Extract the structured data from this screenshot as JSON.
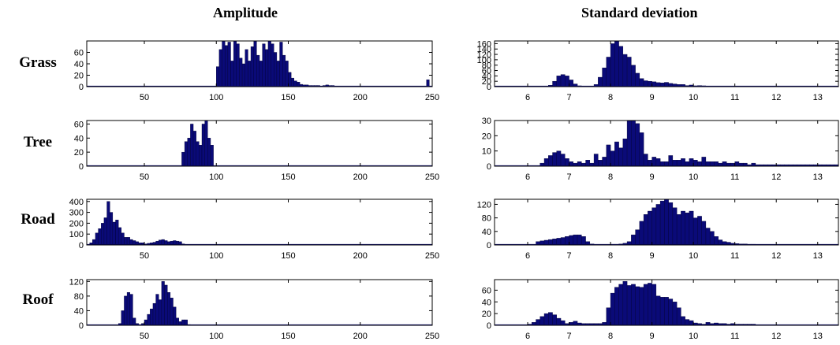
{
  "titles": {
    "left": "Amplitude",
    "right": "Standard deviation"
  },
  "row_labels": [
    "Grass",
    "Tree",
    "Road",
    "Roof"
  ],
  "colors": {
    "bar": "#0a0a78",
    "bar_stroke": "#000033",
    "axis": "#000000"
  },
  "chart_data": [
    {
      "type": "bar",
      "class": "Grass",
      "feature": "Amplitude",
      "xlim": [
        10,
        250
      ],
      "ylim": [
        0,
        80
      ],
      "xticks": [
        50,
        100,
        150,
        200,
        250
      ],
      "yticks": [
        0,
        20,
        40,
        60
      ],
      "bin_start": 10,
      "bin_width": 2,
      "values": [
        0,
        0,
        0,
        0,
        0,
        0,
        0,
        0,
        0,
        0,
        0,
        0,
        0,
        0,
        0,
        0,
        0,
        0,
        0,
        0,
        0,
        0,
        0,
        0,
        0,
        0,
        0,
        0,
        0,
        0,
        0,
        0,
        0,
        0,
        0,
        0,
        0,
        0,
        0,
        0,
        0,
        0,
        0,
        0,
        0,
        35,
        65,
        80,
        72,
        78,
        45,
        80,
        75,
        50,
        40,
        65,
        45,
        70,
        80,
        55,
        45,
        75,
        65,
        80,
        75,
        60,
        45,
        78,
        55,
        45,
        25,
        15,
        10,
        8,
        4,
        3,
        3,
        2,
        2,
        2,
        2,
        1,
        2,
        3,
        2,
        2,
        1,
        1,
        1,
        1,
        1,
        1,
        1,
        1,
        1,
        1,
        1,
        0,
        0,
        0,
        0,
        0,
        0,
        0,
        0,
        0,
        0,
        0,
        0,
        0,
        0,
        0,
        0,
        0,
        0,
        0,
        0,
        0,
        12
      ]
    },
    {
      "type": "bar",
      "class": "Grass",
      "feature": "Standard deviation",
      "xlim": [
        5.2,
        13.5
      ],
      "ylim": [
        0,
        170
      ],
      "xticks": [
        6,
        7,
        8,
        9,
        10,
        11,
        12,
        13
      ],
      "yticks": [
        0,
        20,
        40,
        60,
        80,
        100,
        120,
        140,
        160
      ],
      "bin_start": 5.2,
      "bin_width": 0.1,
      "values": [
        0,
        0,
        0,
        0,
        0,
        0,
        0,
        0,
        0,
        0,
        0,
        0,
        2,
        5,
        20,
        40,
        45,
        40,
        25,
        10,
        3,
        2,
        2,
        2,
        8,
        35,
        70,
        110,
        160,
        170,
        150,
        120,
        110,
        80,
        50,
        30,
        22,
        20,
        18,
        15,
        14,
        16,
        12,
        10,
        8,
        8,
        4,
        6,
        3,
        4,
        3,
        2,
        2,
        2,
        2,
        2,
        2,
        1,
        1,
        1,
        1,
        1,
        1,
        1,
        1,
        1,
        1,
        1,
        1,
        1,
        1,
        1,
        1,
        1,
        1,
        1,
        1,
        1,
        1,
        1,
        1,
        1,
        1
      ]
    },
    {
      "type": "bar",
      "class": "Tree",
      "feature": "Amplitude",
      "xlim": [
        10,
        250
      ],
      "ylim": [
        0,
        65
      ],
      "xticks": [
        50,
        100,
        150,
        200,
        250
      ],
      "yticks": [
        0,
        20,
        40,
        60
      ],
      "bin_start": 10,
      "bin_width": 2,
      "values": [
        0,
        0,
        0,
        0,
        0,
        0,
        0,
        0,
        0,
        0,
        0,
        0,
        0,
        0,
        0,
        0,
        0,
        0,
        0,
        0,
        0,
        0,
        0,
        0,
        0,
        0,
        0,
        0,
        0,
        0,
        0,
        0,
        0,
        20,
        35,
        40,
        60,
        50,
        35,
        30,
        60,
        65,
        40,
        30
      ]
    },
    {
      "type": "bar",
      "class": "Tree",
      "feature": "Standard deviation",
      "xlim": [
        5.2,
        13.5
      ],
      "ylim": [
        0,
        30
      ],
      "xticks": [
        6,
        7,
        8,
        9,
        10,
        11,
        12,
        13
      ],
      "yticks": [
        0,
        10,
        20,
        30
      ],
      "bin_start": 5.2,
      "bin_width": 0.1,
      "values": [
        0,
        0,
        0,
        0,
        0,
        0,
        0,
        0,
        0,
        0,
        0,
        2,
        5,
        7,
        9,
        10,
        8,
        5,
        3,
        2,
        3,
        2,
        4,
        2,
        8,
        4,
        6,
        14,
        10,
        16,
        12,
        18,
        30,
        30,
        28,
        22,
        8,
        4,
        6,
        5,
        3,
        3,
        7,
        4,
        4,
        5,
        3,
        5,
        4,
        3,
        6,
        3,
        3,
        3,
        2,
        3,
        2,
        2,
        3,
        2,
        2,
        1,
        2,
        1,
        1,
        1,
        1,
        1,
        1,
        1,
        1,
        1,
        1,
        1,
        1,
        1,
        1,
        1,
        1,
        1,
        1,
        1,
        1
      ]
    },
    {
      "type": "bar",
      "class": "Road",
      "feature": "Amplitude",
      "xlim": [
        10,
        250
      ],
      "ylim": [
        0,
        420
      ],
      "xticks": [
        50,
        100,
        150,
        200,
        250
      ],
      "yticks": [
        0,
        100,
        200,
        300,
        400
      ],
      "bin_start": 10,
      "bin_width": 2,
      "values": [
        0,
        20,
        50,
        110,
        150,
        200,
        250,
        400,
        300,
        210,
        230,
        160,
        110,
        70,
        70,
        50,
        40,
        30,
        20,
        20,
        10,
        15,
        20,
        25,
        35,
        45,
        50,
        40,
        30,
        35,
        40,
        35,
        30,
        10,
        5,
        3,
        2,
        2,
        1,
        1,
        1,
        1,
        1,
        1,
        1,
        1,
        1,
        1,
        1,
        1,
        1,
        1,
        1,
        1,
        1,
        1,
        1,
        1,
        1,
        1,
        1,
        1,
        1,
        1,
        1,
        1,
        1,
        1,
        1,
        1,
        1,
        1,
        1,
        1,
        1,
        1,
        1,
        1,
        1,
        1,
        1,
        1,
        1,
        1,
        1,
        1,
        1,
        1,
        1,
        1,
        1,
        1,
        1,
        1,
        1,
        1,
        1,
        1,
        1,
        1,
        1,
        1,
        1,
        1,
        1,
        1,
        1,
        1,
        1,
        1,
        1,
        1,
        1,
        1,
        1,
        1,
        1,
        1,
        1,
        1
      ]
    },
    {
      "type": "bar",
      "class": "Road",
      "feature": "Standard deviation",
      "xlim": [
        5.2,
        13.5
      ],
      "ylim": [
        0,
        135
      ],
      "xticks": [
        6,
        7,
        8,
        9,
        10,
        11,
        12,
        13
      ],
      "yticks": [
        0,
        40,
        80,
        120
      ],
      "bin_start": 5.2,
      "bin_width": 0.1,
      "values": [
        0,
        0,
        0,
        0,
        0,
        0,
        0,
        0,
        0,
        0,
        10,
        12,
        14,
        16,
        18,
        20,
        22,
        25,
        28,
        30,
        30,
        25,
        10,
        3,
        1,
        1,
        1,
        1,
        2,
        2,
        3,
        5,
        10,
        30,
        45,
        70,
        90,
        100,
        110,
        120,
        130,
        135,
        125,
        110,
        90,
        100,
        95,
        100,
        80,
        85,
        70,
        50,
        40,
        25,
        15,
        10,
        8,
        5,
        4,
        3,
        3,
        2,
        2,
        1,
        1,
        1,
        1,
        1,
        1,
        1,
        1,
        1,
        1,
        1,
        1,
        1,
        1,
        1,
        1,
        1,
        1,
        1,
        1,
        1
      ]
    },
    {
      "type": "bar",
      "class": "Roof",
      "feature": "Amplitude",
      "xlim": [
        10,
        250
      ],
      "ylim": [
        0,
        125
      ],
      "xticks": [
        50,
        100,
        150,
        200,
        250
      ],
      "yticks": [
        0,
        40,
        80,
        120
      ],
      "bin_start": 10,
      "bin_width": 2,
      "values": [
        0,
        0,
        0,
        0,
        0,
        0,
        0,
        0,
        0,
        0,
        0,
        5,
        40,
        80,
        90,
        85,
        20,
        5,
        2,
        5,
        15,
        30,
        45,
        60,
        85,
        70,
        120,
        110,
        90,
        75,
        50,
        20,
        10,
        15,
        15,
        2
      ]
    },
    {
      "type": "bar",
      "class": "Roof",
      "feature": "Standard deviation",
      "xlim": [
        5.2,
        13.5
      ],
      "ylim": [
        0,
        78
      ],
      "xticks": [
        6,
        7,
        8,
        9,
        10,
        11,
        12,
        13
      ],
      "yticks": [
        0,
        20,
        40,
        60
      ],
      "bin_start": 5.2,
      "bin_width": 0.1,
      "values": [
        0,
        0,
        0,
        0,
        0,
        0,
        0,
        0,
        2,
        5,
        10,
        15,
        20,
        22,
        18,
        12,
        8,
        3,
        5,
        7,
        4,
        3,
        3,
        3,
        3,
        3,
        5,
        30,
        55,
        65,
        70,
        75,
        68,
        70,
        66,
        65,
        70,
        72,
        70,
        50,
        48,
        48,
        45,
        40,
        30,
        15,
        10,
        8,
        4,
        3,
        2,
        5,
        3,
        4,
        3,
        3,
        2,
        3,
        2,
        2,
        2,
        2,
        2,
        1,
        1,
        1,
        1,
        1,
        1,
        1,
        1,
        1,
        1,
        1,
        1,
        1,
        1,
        1,
        1,
        1,
        1,
        1,
        1
      ]
    }
  ]
}
